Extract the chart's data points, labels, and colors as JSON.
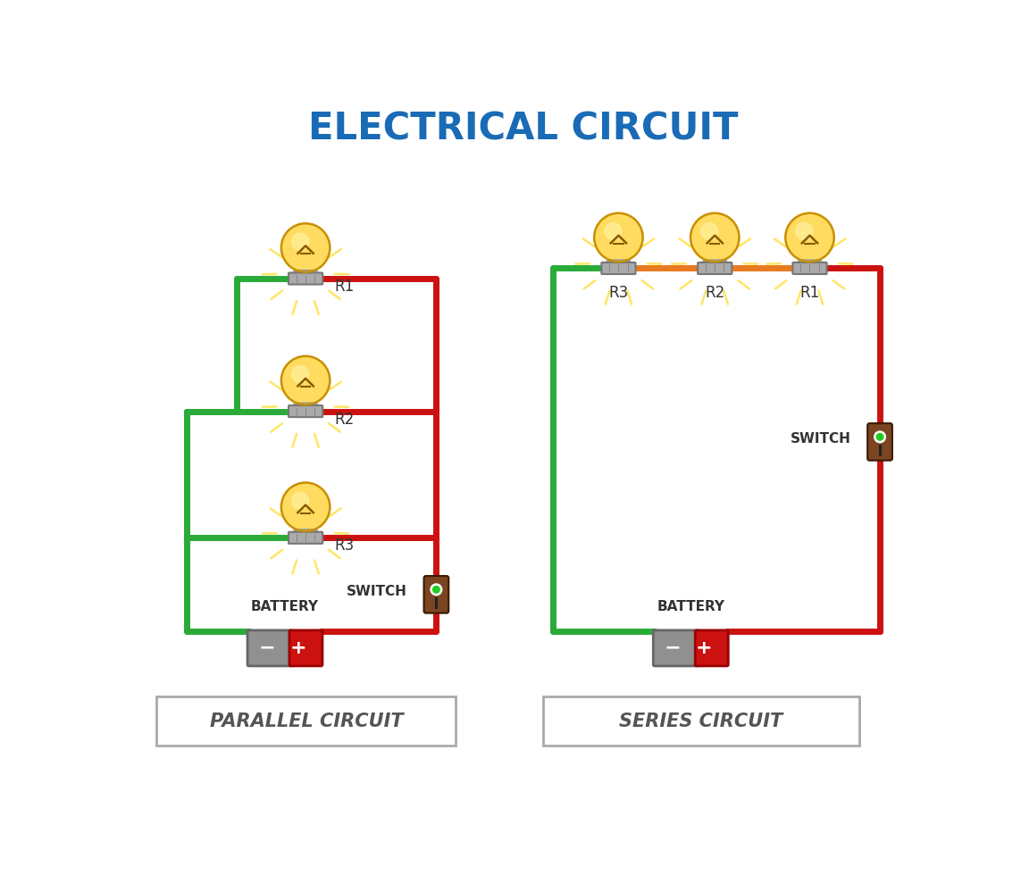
{
  "title": "ELECTRICAL CIRCUIT",
  "title_color": "#1a6bb5",
  "title_fontsize": 30,
  "bg_color": "#ffffff",
  "label1": "PARALLEL CIRCUIT",
  "label2": "SERIES CIRCUIT",
  "green_color": "#2aaa38",
  "red_color": "#cc1111",
  "orange_color": "#e87a20",
  "gray_color": "#888888",
  "dark_gray": "#555555",
  "brown_color": "#7a4520",
  "battery_gray": "#909090",
  "battery_red": "#cc1111",
  "wire_lw": 5.0,
  "bulb_amber": "#f5b800",
  "bulb_amber2": "#ffdc60",
  "bulb_outline": "#c89000",
  "bulb_neck": "#aaaaaa",
  "bulb_socket": "#999999",
  "ray_color": "#ffe566"
}
